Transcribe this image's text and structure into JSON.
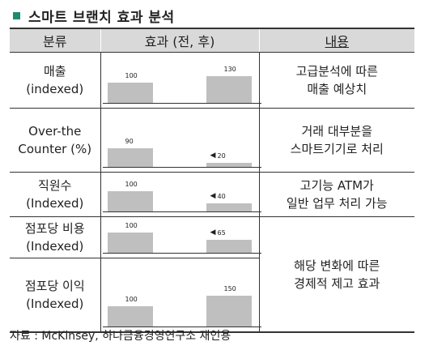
{
  "title": "스마트 브랜치 효과 분석",
  "headers": {
    "category": "분류",
    "effect": "효과 (전, 후)",
    "content": "내용"
  },
  "rows": [
    {
      "category": [
        "매출",
        "(indexed)"
      ],
      "before": 100,
      "after": 130,
      "after_label": "130",
      "arrow": false,
      "content": [
        "고급분석에 따른",
        "매출 예상치"
      ]
    },
    {
      "category": [
        "Over-the",
        "Counter (%)"
      ],
      "before": 90,
      "after": 20,
      "after_label": "20",
      "arrow": true,
      "content": [
        "거래 대부분을",
        "스마트기기로 처리"
      ]
    },
    {
      "category": [
        "직원수",
        "(Indexed)"
      ],
      "before": 100,
      "after": 40,
      "after_label": "40",
      "arrow": true,
      "content": [
        "고기능 ATM가",
        "일반 업무 처리 가능"
      ]
    },
    {
      "category": [
        "점포당 비용",
        "(Indexed)"
      ],
      "before": 100,
      "after": 65,
      "after_label": "65",
      "arrow": true,
      "content": [
        "해당 변화에 따른",
        "경제적 제고 효과"
      ]
    },
    {
      "category": [
        "점포당 이익",
        "(Indexed)"
      ],
      "before": 100,
      "after": 150,
      "after_label": "150",
      "arrow": false
    }
  ],
  "source": "자료 : McKinsey, 하나금융경영연구소 재인용"
}
